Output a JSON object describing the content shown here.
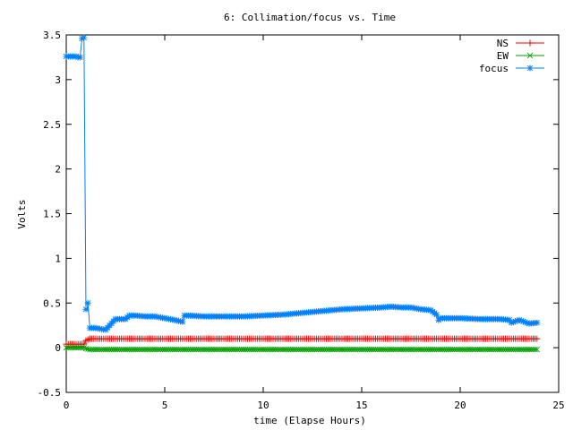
{
  "chart_data": {
    "type": "line",
    "title": "6: Collimation/focus vs. Time",
    "xlabel": "time (Elapse Hours)",
    "ylabel": "Volts",
    "xlim": [
      0,
      25
    ],
    "ylim": [
      -0.5,
      3.5
    ],
    "xticks": [
      0,
      5,
      10,
      15,
      20,
      25
    ],
    "xtick_labels": [
      "0",
      "5",
      "10",
      "15",
      "20",
      "25"
    ],
    "yticks": [
      -0.5,
      0,
      0.5,
      1,
      1.5,
      2,
      2.5,
      3,
      3.5
    ],
    "ytick_labels": [
      "-0.5",
      "0",
      "0.5",
      "1",
      "1.5",
      "2",
      "2.5",
      "3",
      "3.5"
    ],
    "grid": false,
    "legend_position": "top-right",
    "series": [
      {
        "name": "NS",
        "color": "#ff0000",
        "marker": "plus",
        "x": [
          0,
          0.9,
          1.0,
          1.2,
          2,
          5,
          10,
          15,
          20,
          23.9
        ],
        "y": [
          0.04,
          0.04,
          0.08,
          0.1,
          0.1,
          0.1,
          0.1,
          0.1,
          0.1,
          0.1
        ]
      },
      {
        "name": "EW",
        "color": "#00a000",
        "marker": "cross",
        "x": [
          0,
          0.9,
          1.0,
          1.2,
          2,
          5,
          10,
          15,
          20,
          23.9
        ],
        "y": [
          0.0,
          0.0,
          -0.01,
          -0.02,
          -0.02,
          -0.02,
          -0.02,
          -0.02,
          -0.02,
          -0.02
        ]
      },
      {
        "name": "focus",
        "color": "#0080ff",
        "marker": "star",
        "x": [
          0,
          0.4,
          0.5,
          0.5,
          0.6,
          0.7,
          0.8,
          0.85,
          0.9,
          1.0,
          1.05,
          1.1,
          1.2,
          1.5,
          2.0,
          2.2,
          2.5,
          3.0,
          3.2,
          3.5,
          4.0,
          4.5,
          5.0,
          5.5,
          5.9,
          6.0,
          6.2,
          7,
          8,
          9,
          10,
          11,
          12,
          13,
          14,
          15,
          16,
          16.5,
          17,
          17.5,
          18,
          18.5,
          18.8,
          18.9,
          19.0,
          19.5,
          20,
          21,
          22,
          22.5,
          22.6,
          23,
          23.5,
          23.9
        ],
        "y": [
          3.26,
          3.26,
          3.26,
          3.25,
          3.25,
          3.25,
          3.46,
          3.47,
          3.47,
          0.43,
          0.42,
          0.5,
          0.22,
          0.22,
          0.2,
          0.25,
          0.32,
          0.32,
          0.36,
          0.36,
          0.35,
          0.35,
          0.33,
          0.31,
          0.29,
          0.36,
          0.36,
          0.35,
          0.35,
          0.35,
          0.36,
          0.37,
          0.39,
          0.41,
          0.43,
          0.44,
          0.45,
          0.46,
          0.45,
          0.45,
          0.43,
          0.42,
          0.37,
          0.31,
          0.33,
          0.33,
          0.33,
          0.32,
          0.32,
          0.31,
          0.28,
          0.31,
          0.27,
          0.28
        ]
      }
    ]
  }
}
